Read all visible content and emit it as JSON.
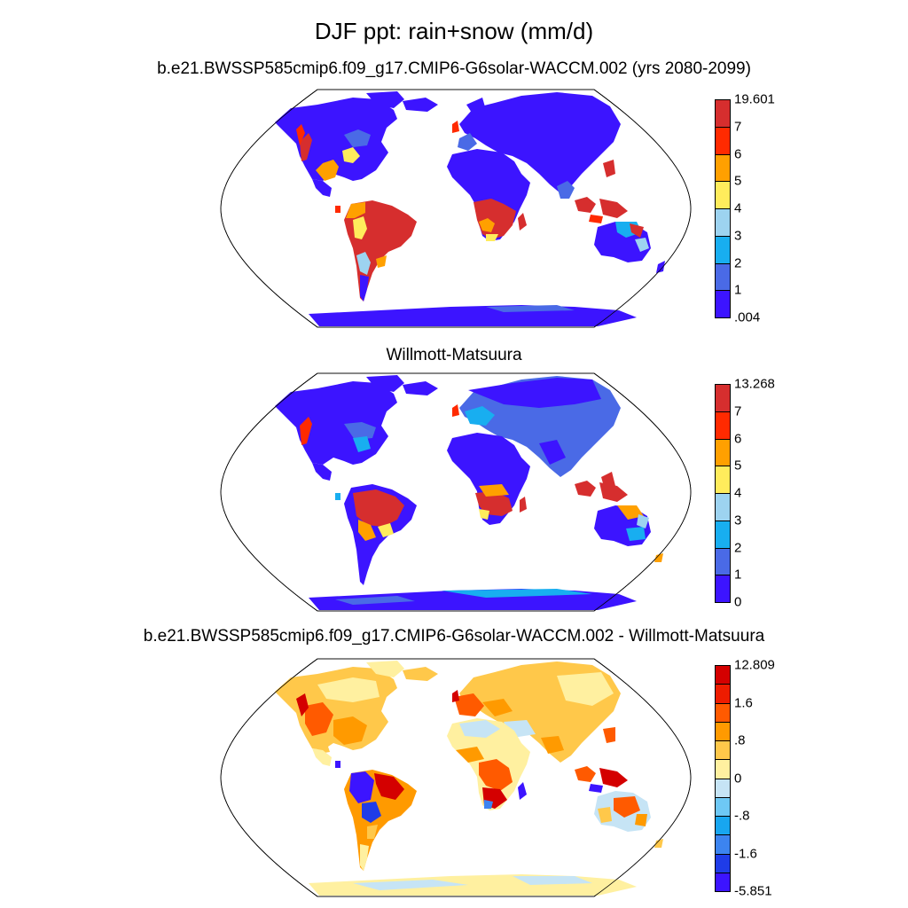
{
  "title": "DJF ppt: rain+snow (mm/d)",
  "panels": [
    {
      "subtitle": "b.e21.BWSSP585cmip6.f09_g17.CMIP6-G6solar-WACCM.002 (yrs 2080-2099)",
      "colorbar": {
        "labels": [
          "19.601",
          "7",
          "6",
          "5",
          "4",
          "3",
          "2",
          "1",
          ".004"
        ],
        "colors": [
          "#d62e2e",
          "#ff2a00",
          "#ffa000",
          "#ffec5c",
          "#9dd3f0",
          "#18aef0",
          "#4a6ae6",
          "#3c14ff"
        ]
      }
    },
    {
      "subtitle": "Willmott-Matsuura",
      "colorbar": {
        "labels": [
          "13.268",
          "7",
          "6",
          "5",
          "4",
          "3",
          "2",
          "1",
          "0"
        ],
        "colors": [
          "#d62e2e",
          "#ff2a00",
          "#ffa000",
          "#ffec5c",
          "#9dd3f0",
          "#18aef0",
          "#4a6ae6",
          "#3c14ff"
        ]
      }
    },
    {
      "subtitle": "b.e21.BWSSP585cmip6.f09_g17.CMIP6-G6solar-WACCM.002 - Willmott-Matsuura",
      "colorbar": {
        "labels": [
          "12.809",
          "",
          "1.6",
          "",
          ".8",
          "",
          "0",
          "",
          "-.8",
          "",
          "-1.6",
          "",
          "-5.851"
        ],
        "colors": [
          "#d40000",
          "#ee1c00",
          "#ff5a00",
          "#ff9a00",
          "#ffc84a",
          "#fff0a0",
          "#c6e4f5",
          "#6ec8f5",
          "#18a6f0",
          "#3c84f0",
          "#1f3ce8",
          "#3c14ff"
        ]
      }
    }
  ]
}
